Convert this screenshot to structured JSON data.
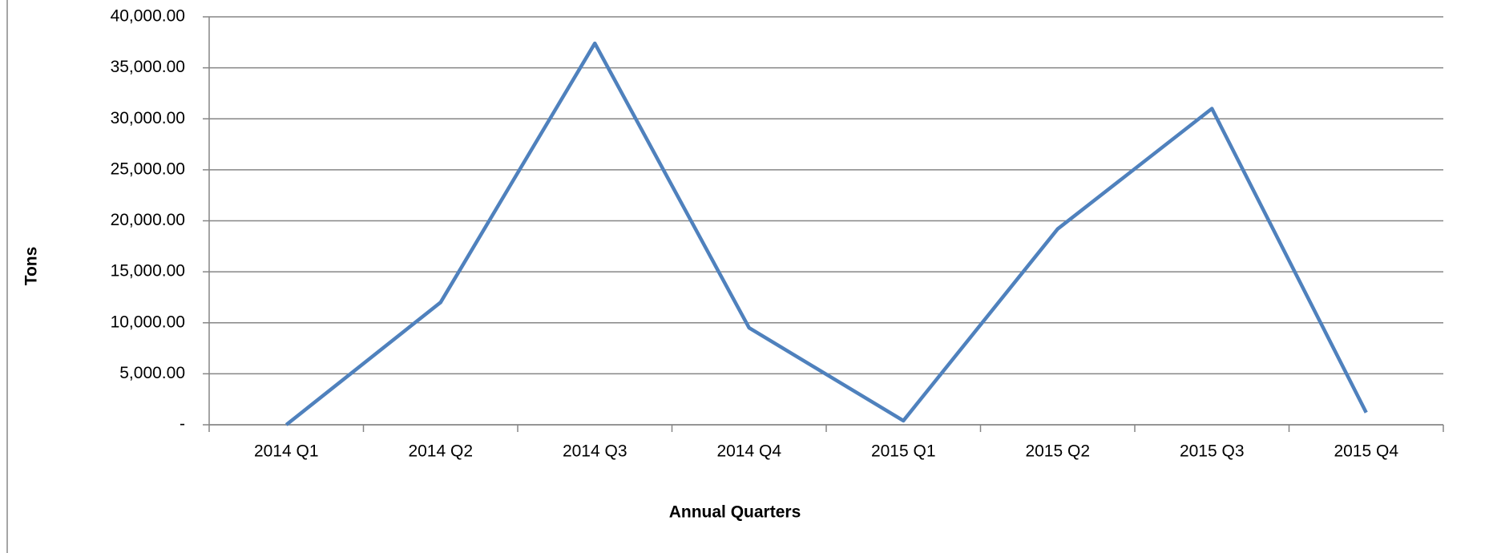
{
  "chart_data": {
    "type": "line",
    "x_label": "Annual Quarters",
    "y_label": "Tons",
    "categories": [
      "2014 Q1",
      "2014 Q2",
      "2014 Q3",
      "2014 Q4",
      "2015 Q1",
      "2015 Q2",
      "2015 Q3",
      "2015 Q4"
    ],
    "series": [
      {
        "color": "#4f81bd",
        "values": [
          0,
          12000,
          37400,
          9500,
          400,
          19200,
          31000,
          1200
        ]
      }
    ],
    "ylim": [
      0,
      40000
    ],
    "yticks": [
      {
        "value": 0,
        "label": "-"
      },
      {
        "value": 5000,
        "label": "5,000.00"
      },
      {
        "value": 10000,
        "label": "10,000.00"
      },
      {
        "value": 15000,
        "label": "15,000.00"
      },
      {
        "value": 20000,
        "label": "20,000.00"
      },
      {
        "value": 25000,
        "label": "25,000.00"
      },
      {
        "value": 30000,
        "label": "30,000.00"
      },
      {
        "value": 35000,
        "label": "35,000.00"
      },
      {
        "value": 40000,
        "label": "40,000.00"
      }
    ],
    "grid": true
  }
}
